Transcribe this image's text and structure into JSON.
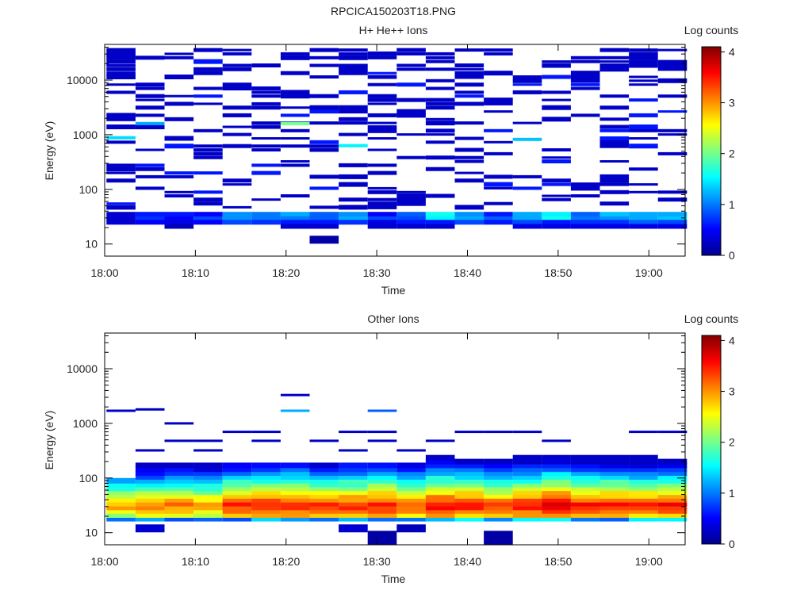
{
  "figure": {
    "title": "RPCICA150203T18.PNG"
  },
  "chart_data": [
    {
      "type": "heatmap",
      "title": "H+ He++ Ions",
      "xlabel": "Time",
      "ylabel": "Energy (eV)",
      "colorbar_label": "Log counts",
      "colorbar_ticks": [
        "0",
        "1",
        "2",
        "3",
        "4"
      ],
      "colorbar_range": [
        0,
        4.1
      ],
      "x_range": [
        "18:00",
        "19:04"
      ],
      "x_ticks": [
        "18:00",
        "18:10",
        "18:20",
        "18:30",
        "18:40",
        "18:50",
        "19:00"
      ],
      "y_scale": "log",
      "y_range": [
        6,
        45000
      ],
      "y_ticks": [
        "10",
        "100",
        "1000",
        "10000"
      ],
      "time_bins_min": [
        1.8,
        5.0,
        8.2,
        11.4,
        14.6,
        17.8,
        21.0,
        24.2,
        27.4,
        30.6,
        33.8,
        37.0,
        40.2,
        43.4,
        46.6,
        49.8,
        53.0,
        56.2,
        59.4,
        62.6
      ],
      "energy_bins_eV": [
        12,
        15,
        18,
        21,
        25,
        29,
        34,
        40,
        47,
        55,
        65,
        76,
        89,
        105,
        123,
        145,
        170,
        200,
        235,
        276,
        325,
        382,
        449,
        528,
        621,
        730,
        858,
        1009,
        1186,
        1394,
        1639,
        1927,
        2266,
        2664,
        3132,
        3682,
        4330,
        5090,
        5985,
        7036,
        8270,
        9725,
        11430,
        13440,
        15800,
        18580,
        21840,
        25680,
        30200,
        35500
      ],
      "low_energy_band": [
        {
          "energy_eV": 35,
          "values": [
            0.3,
            0.6,
            0.6,
            0.5,
            1.1,
            1.0,
            1.2,
            0.9,
            1.1,
            0.5,
            0.9,
            1.6,
            1.1,
            0.6,
            1.2,
            1.5,
            0.9,
            1.3,
            1.2,
            1.2
          ]
        },
        {
          "energy_eV": 29,
          "values": [
            0.3,
            0.7,
            0.5,
            0.8,
            1.1,
            1.0,
            1.0,
            0.9,
            1.2,
            0.8,
            0.8,
            1.5,
            1.2,
            0.9,
            1.2,
            1.6,
            1.0,
            1.1,
            1.2,
            1.3
          ]
        },
        {
          "energy_eV": 25,
          "values": [
            0.3,
            0.5,
            0.4,
            0.5,
            0.8,
            0.7,
            0.6,
            0.6,
            0.7,
            0.4,
            0.6,
            0.6,
            0.8,
            0.6,
            0.8,
            0.6,
            0.7,
            0.7,
            0.9,
            0.8
          ]
        },
        {
          "energy_eV": 21,
          "values": [
            null,
            null,
            0.2,
            null,
            null,
            null,
            0.3,
            0.3,
            null,
            0.3,
            0.3,
            0.3,
            null,
            null,
            0.4,
            0.4,
            0.4,
            0.4,
            0.4,
            0.4
          ]
        },
        {
          "energy_eV": 12,
          "values": [
            null,
            null,
            null,
            null,
            null,
            null,
            null,
            0.1,
            null,
            null,
            null,
            null,
            null,
            null,
            null,
            null,
            null,
            null,
            null,
            null
          ]
        }
      ],
      "upper_channels": "sparse single-count events (~0.3 log counts) between 40 eV and 40000 eV, with isolated cyan/green cells near 900 eV and 1600 eV"
    },
    {
      "type": "heatmap",
      "title": "Other Ions",
      "xlabel": "Time",
      "ylabel": "Energy (eV)",
      "colorbar_label": "Log counts",
      "colorbar_ticks": [
        "0",
        "1",
        "2",
        "3",
        "4"
      ],
      "colorbar_range": [
        0,
        4.1
      ],
      "x_range": [
        "18:00",
        "19:04"
      ],
      "x_ticks": [
        "18:00",
        "18:10",
        "18:20",
        "18:30",
        "18:40",
        "18:50",
        "19:00"
      ],
      "y_scale": "log",
      "y_range": [
        6,
        45000
      ],
      "y_ticks": [
        "10",
        "100",
        "1000",
        "10000"
      ],
      "time_bins_min": [
        1.8,
        5.0,
        8.2,
        11.4,
        14.6,
        17.8,
        21.0,
        24.2,
        27.4,
        30.6,
        33.8,
        37.0,
        40.2,
        43.4,
        46.6,
        49.8,
        53.0,
        56.2,
        59.4,
        62.6
      ],
      "peak_energy_eV": 32,
      "peak_log_counts": [
        3.0,
        3.1,
        3.2,
        3.1,
        3.5,
        3.6,
        3.6,
        3.5,
        3.5,
        3.6,
        3.4,
        3.7,
        3.6,
        3.4,
        3.6,
        3.8,
        3.6,
        3.6,
        3.5,
        3.6
      ],
      "upper_cutoff_eV": [
        90,
        170,
        190,
        190,
        170,
        170,
        170,
        190,
        190,
        170,
        170,
        240,
        230,
        200,
        270,
        250,
        240,
        250,
        240,
        210
      ],
      "sparse_events_eV": [
        1700,
        1800,
        1000,
        3300,
        1700
      ]
    }
  ]
}
